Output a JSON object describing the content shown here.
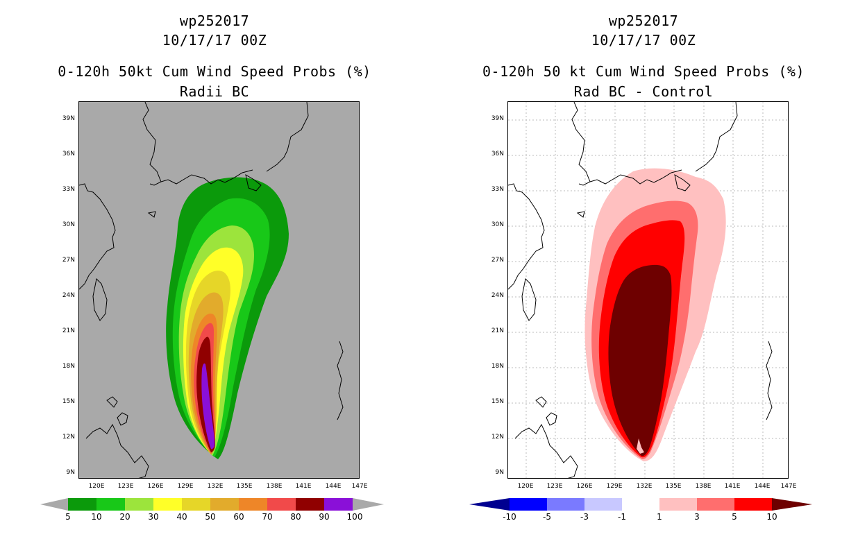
{
  "left": {
    "storm_id": "wp252017",
    "date": "10/17/17 00Z",
    "title": "0-120h 50kt Cum Wind Speed Probs (%)",
    "subtitle": "Radii BC",
    "legend_labels": [
      "5",
      "10",
      "20",
      "30",
      "40",
      "50",
      "60",
      "70",
      "80",
      "90",
      "100"
    ],
    "legend_colors": [
      "#0b9a0b",
      "#18c818",
      "#9ce43c",
      "#ffff28",
      "#e6d628",
      "#e2ab2c",
      "#ee8628",
      "#f14a4a",
      "#900000",
      "#8a10d8"
    ],
    "under_color": "#a9a9a9",
    "over_color": "#a9a9a9"
  },
  "right": {
    "storm_id": "wp252017",
    "date": "10/17/17 00Z",
    "title": "0-120h 50 kt Cum Wind Speed Probs (%)",
    "subtitle": "Rad BC - Control",
    "legend_labels": [
      "-10",
      "-5",
      "-3",
      "-1",
      "1",
      "3",
      "5",
      "10"
    ],
    "legend_colors": [
      "#0000ff",
      "#7a7aff",
      "#c8c8ff",
      "#ffffff",
      "#ffc0c0",
      "#ff6e6e",
      "#ff0000"
    ],
    "under_color": "#000090",
    "over_color": "#6e0000"
  },
  "axes": {
    "lat_labels": [
      "39N",
      "36N",
      "33N",
      "30N",
      "27N",
      "24N",
      "21N",
      "18N",
      "15N",
      "12N",
      "9N"
    ],
    "lon_labels": [
      "120E",
      "123E",
      "126E",
      "129E",
      "132E",
      "135E",
      "138E",
      "141E",
      "144E",
      "147E"
    ]
  },
  "colors": {
    "left_background": "#a9a9a9",
    "right_background": "#ffffff",
    "grid": "#bbbbbb",
    "coast": "#000000"
  }
}
